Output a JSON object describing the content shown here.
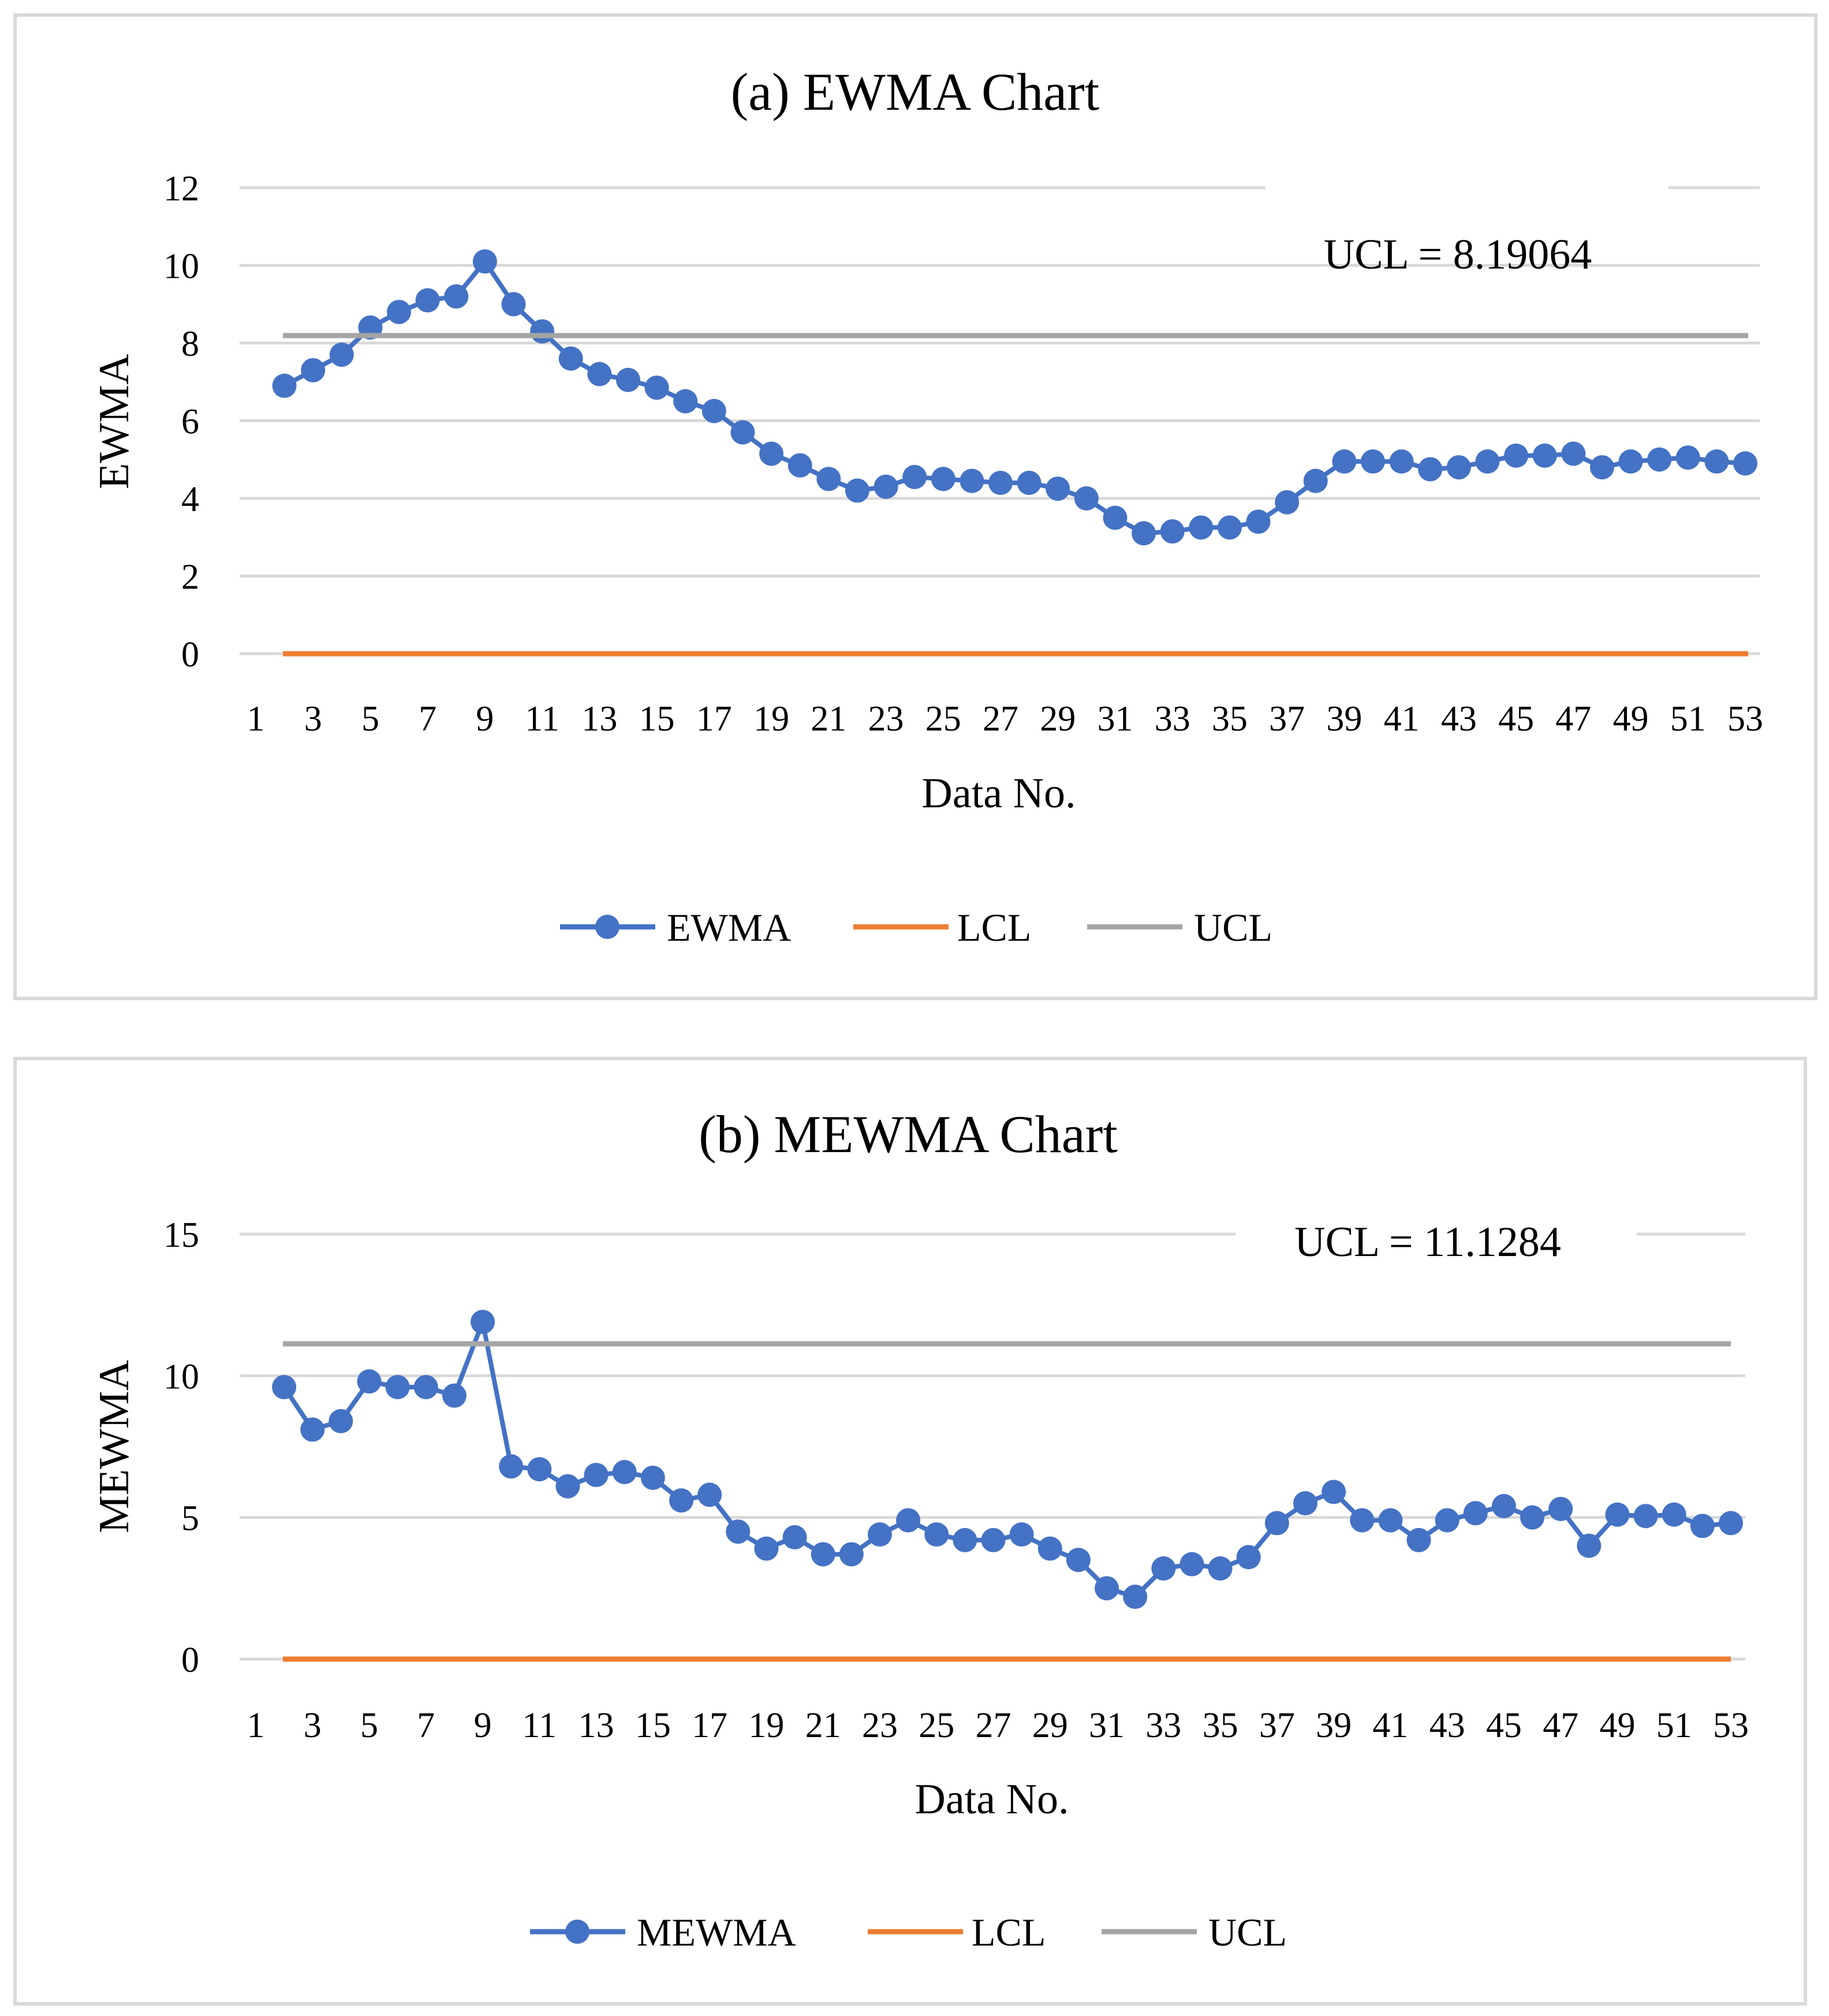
{
  "chart_data": [
    {
      "type": "line",
      "title": "(a) EWMA Chart",
      "xlabel": "Data No.",
      "ylabel": "EWMA",
      "ylim": [
        0,
        12
      ],
      "yticks": [
        0,
        2,
        4,
        6,
        8,
        10,
        12
      ],
      "xtick_labels": [
        "1",
        "3",
        "5",
        "7",
        "9",
        "11",
        "13",
        "15",
        "17",
        "19",
        "21",
        "23",
        "25",
        "27",
        "29",
        "31",
        "33",
        "35",
        "37",
        "39",
        "41",
        "43",
        "45",
        "47",
        "49",
        "51",
        "53"
      ],
      "grid": true,
      "legend_position": "bottom",
      "annotation": "UCL = 8.19064",
      "x": [
        2,
        3,
        4,
        5,
        6,
        7,
        8,
        9,
        10,
        11,
        12,
        13,
        14,
        15,
        16,
        17,
        18,
        19,
        20,
        21,
        22,
        23,
        24,
        25,
        26,
        27,
        28,
        29,
        30,
        31,
        32,
        33,
        34,
        35,
        36,
        37,
        38,
        39,
        40,
        41,
        42,
        43,
        44,
        45,
        46,
        47,
        48,
        49,
        50,
        51,
        52,
        53
      ],
      "series": [
        {
          "name": "EWMA",
          "color": "#4472C4",
          "markers": true,
          "values": [
            6.9,
            7.3,
            7.7,
            8.4,
            8.8,
            9.1,
            9.2,
            10.1,
            9.0,
            8.3,
            7.6,
            7.2,
            7.05,
            6.85,
            6.5,
            6.25,
            5.7,
            5.15,
            4.85,
            4.5,
            4.2,
            4.3,
            4.55,
            4.5,
            4.45,
            4.4,
            4.4,
            4.25,
            4.0,
            3.5,
            3.1,
            3.15,
            3.25,
            3.25,
            3.4,
            3.9,
            4.45,
            4.95,
            4.95,
            4.95,
            4.75,
            4.8,
            4.95,
            5.1,
            5.1,
            5.15,
            4.8,
            4.95,
            5.0,
            5.05,
            4.95,
            4.9
          ]
        },
        {
          "name": "LCL",
          "color": "#ED7D31",
          "markers": false,
          "constant": 0
        },
        {
          "name": "UCL",
          "color": "#A5A5A5",
          "markers": false,
          "constant": 8.19064
        }
      ]
    },
    {
      "type": "line",
      "title": "(b) MEWMA Chart",
      "xlabel": "Data No.",
      "ylabel": "MEWMA",
      "ylim": [
        0,
        15
      ],
      "yticks": [
        0,
        5,
        10,
        15
      ],
      "xtick_labels": [
        "1",
        "3",
        "5",
        "7",
        "9",
        "11",
        "13",
        "15",
        "17",
        "19",
        "21",
        "23",
        "25",
        "27",
        "29",
        "31",
        "33",
        "35",
        "37",
        "39",
        "41",
        "43",
        "45",
        "47",
        "49",
        "51",
        "53"
      ],
      "grid": true,
      "legend_position": "bottom",
      "annotation": "UCL = 11.1284",
      "x": [
        2,
        3,
        4,
        5,
        6,
        7,
        8,
        9,
        10,
        11,
        12,
        13,
        14,
        15,
        16,
        17,
        18,
        19,
        20,
        21,
        22,
        23,
        24,
        25,
        26,
        27,
        28,
        29,
        30,
        31,
        32,
        33,
        34,
        35,
        36,
        37,
        38,
        39,
        40,
        41,
        42,
        43,
        44,
        45,
        46,
        47,
        48,
        49,
        50,
        51,
        52,
        53
      ],
      "series": [
        {
          "name": "MEWMA",
          "color": "#4472C4",
          "markers": true,
          "values": [
            9.6,
            8.1,
            8.4,
            9.8,
            9.6,
            9.6,
            9.3,
            11.9,
            6.8,
            6.7,
            6.1,
            6.5,
            6.6,
            6.4,
            5.6,
            5.8,
            4.5,
            3.9,
            4.3,
            3.7,
            3.7,
            4.4,
            4.9,
            4.4,
            4.2,
            4.2,
            4.4,
            3.9,
            3.5,
            2.5,
            2.2,
            3.2,
            3.35,
            3.2,
            3.6,
            4.8,
            5.5,
            5.9,
            4.9,
            4.9,
            4.2,
            4.9,
            5.15,
            5.4,
            5.0,
            5.3,
            4.0,
            5.1,
            5.05,
            5.1,
            4.7,
            4.8
          ]
        },
        {
          "name": "LCL",
          "color": "#ED7D31",
          "markers": false,
          "constant": 0
        },
        {
          "name": "UCL",
          "color": "#A5A5A5",
          "markers": false,
          "constant": 11.1284
        }
      ]
    }
  ]
}
